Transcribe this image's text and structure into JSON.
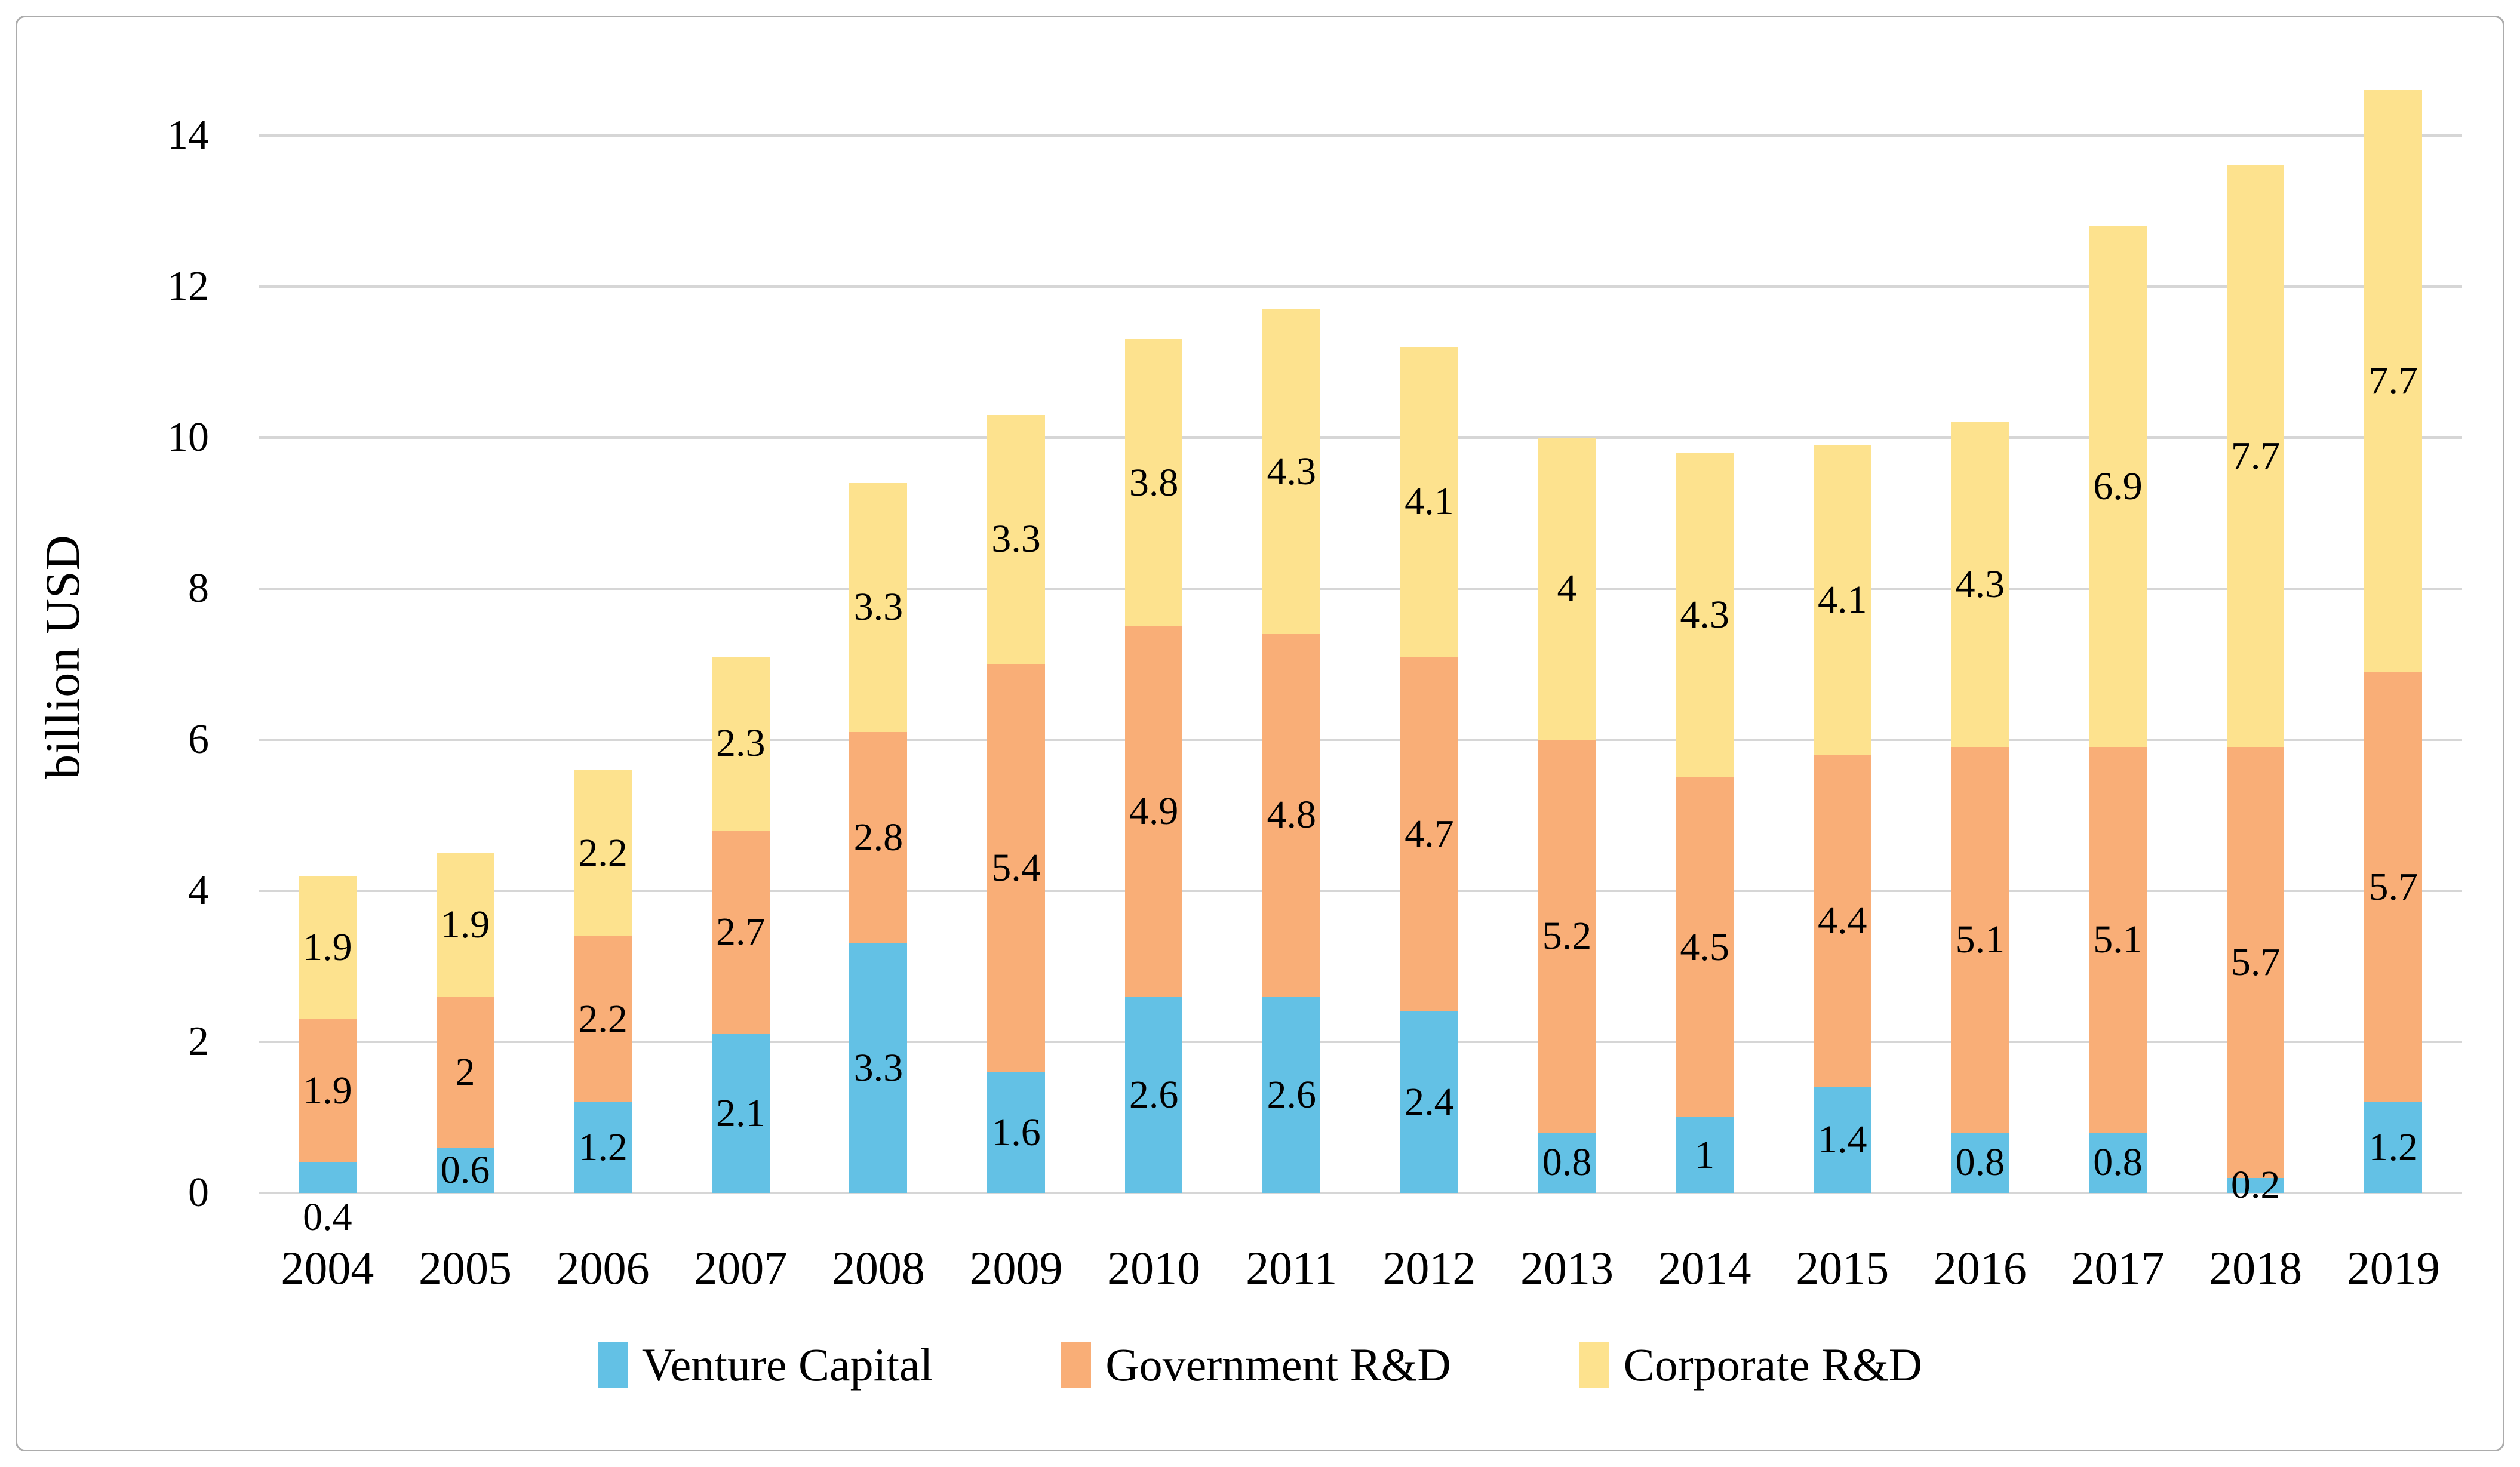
{
  "figure": {
    "background": "#FFFFFF",
    "border_color": "#ACACAC"
  },
  "chart_data": {
    "type": "bar",
    "stacked": true,
    "title": "",
    "xlabel": "",
    "ylabel": "billion USD",
    "ylim": [
      0,
      15
    ],
    "grid": "horizontal",
    "gridline_color": "#D6D6D6",
    "legend_position": "bottom",
    "ytick_values": [
      0,
      2,
      4,
      6,
      8,
      10,
      12,
      14
    ],
    "ytick_labels": [
      "0",
      "2",
      "4",
      "6",
      "8",
      "10",
      "12",
      "14"
    ],
    "categories": [
      "2004",
      "2005",
      "2006",
      "2007",
      "2008",
      "2009",
      "2010",
      "2011",
      "2012",
      "2013",
      "2014",
      "2015",
      "2016",
      "2017",
      "2018",
      "2019"
    ],
    "series": [
      {
        "name": "Venture Capital",
        "color": "#63C1E5",
        "values": [
          0.4,
          0.6,
          1.2,
          2.1,
          3.3,
          1.6,
          2.6,
          2.6,
          2.4,
          0.8,
          1,
          1.4,
          0.8,
          0.8,
          0.2,
          1.2
        ],
        "labels": [
          "0.4",
          "0.6",
          "1.2",
          "2.1",
          "3.3",
          "1.6",
          "2.6",
          "2.6",
          "2.4",
          "0.8",
          "1",
          "1.4",
          "0.8",
          "0.8",
          "0.2",
          "1.2"
        ]
      },
      {
        "name": "Government R&D",
        "color": "#F9AE77",
        "values": [
          1.9,
          2,
          2.2,
          2.7,
          2.8,
          5.4,
          4.9,
          4.8,
          4.7,
          5.2,
          4.5,
          4.4,
          5.1,
          5.1,
          5.7,
          5.7
        ],
        "labels": [
          "1.9",
          "2",
          "2.2",
          "2.7",
          "2.8",
          "5.4",
          "4.9",
          "4.8",
          "4.7",
          "5.2",
          "4.5",
          "4.4",
          "5.1",
          "5.1",
          "5.7",
          "5.7"
        ]
      },
      {
        "name": "Corporate R&D",
        "color": "#FDE28E",
        "values": [
          1.9,
          1.9,
          2.2,
          2.3,
          3.3,
          3.3,
          3.8,
          4.3,
          4.1,
          4,
          4.3,
          4.1,
          4.3,
          6.9,
          7.7,
          7.7
        ],
        "labels": [
          "1.9",
          "1.9",
          "2.2",
          "2.3",
          "3.3",
          "3.3",
          "3.8",
          "4.3",
          "4.1",
          "4",
          "4.3",
          "4.1",
          "4.3",
          "6.9",
          "7.7",
          "7.7"
        ]
      }
    ],
    "label_overrides": [
      {
        "series": 0,
        "index": 0,
        "position": "below"
      }
    ],
    "label_color": "#000000"
  }
}
